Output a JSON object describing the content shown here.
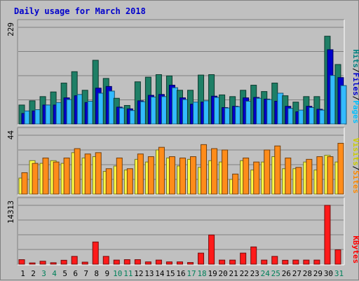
{
  "chart_data": {
    "type": "bar",
    "title": "Daily usage for March 2018",
    "categories": [
      "1",
      "2",
      "3",
      "4",
      "5",
      "6",
      "7",
      "8",
      "9",
      "10",
      "11",
      "12",
      "13",
      "14",
      "15",
      "16",
      "17",
      "18",
      "19",
      "20",
      "21",
      "22",
      "23",
      "24",
      "25",
      "26",
      "27",
      "28",
      "29",
      "30",
      "31"
    ],
    "weekend_days": [
      "3",
      "4",
      "10",
      "11",
      "17",
      "18",
      "24",
      "25",
      "31"
    ],
    "panels": [
      {
        "id": "top",
        "max_label": "229",
        "legend": [
          {
            "label": "Hits",
            "color": "#008080"
          },
          {
            "label": "/",
            "color": "#000000"
          },
          {
            "label": "Files",
            "color": "#0000CC"
          },
          {
            "label": "/",
            "color": "#000000"
          },
          {
            "label": "Pages",
            "color": "#00BFFF"
          }
        ],
        "ylim": [
          0,
          229
        ],
        "series": [
          {
            "name": "Hits",
            "color": "#1E7F66",
            "values": [
              45,
              55,
              65,
              76,
              97,
              124,
              80,
              151,
              108,
              61,
              44,
              100,
              111,
              117,
              114,
              80,
              80,
              116,
              117,
              69,
              65,
              80,
              92,
              77,
              97,
              67,
              52,
              65,
              65,
              208,
              141
            ]
          },
          {
            "name": "Files",
            "color": "#0000CC",
            "values": [
              25,
              31,
              45,
              45,
              62,
              67,
              51,
              85,
              89,
              40,
              36,
              55,
              68,
              70,
              92,
              62,
              47,
              52,
              66,
              39,
              42,
              62,
              63,
              59,
              54,
              42,
              29,
              42,
              35,
              176,
              110
            ]
          },
          {
            "name": "Pages",
            "color": "#33BBFF",
            "values": [
              31,
              34,
              45,
              51,
              58,
              70,
              54,
              73,
              78,
              38,
              32,
              53,
              64,
              65,
              86,
              58,
              52,
              55,
              63,
              38,
              41,
              54,
              61,
              58,
              73,
              37,
              33,
              39,
              33,
              115,
              91
            ]
          }
        ]
      },
      {
        "id": "middle",
        "max_label": "44",
        "legend": [
          {
            "label": "Visits",
            "color": "#CCCC00"
          },
          {
            "label": "/",
            "color": "#000000"
          },
          {
            "label": "Sites",
            "color": "#FF8800"
          }
        ],
        "ylim": [
          0,
          44
        ],
        "series": [
          {
            "name": "Visits",
            "color": "#FFFF44",
            "values": [
              12,
              25,
              23,
              25,
              23,
              31,
              27,
              28,
              17,
              21,
              18,
              26,
              24,
              33,
              27,
              21,
              26,
              20,
              25,
              24,
              11,
              25,
              18,
              24,
              28,
              19,
              19,
              24,
              18,
              29,
              24
            ]
          },
          {
            "name": "Sites",
            "color": "#FF8C1A",
            "values": [
              16,
              23,
              27,
              24,
              27,
              34,
              30,
              31,
              19,
              27,
              19,
              30,
              28,
              35,
              28,
              27,
              28,
              37,
              34,
              33,
              15,
              27,
              24,
              33,
              36,
              27,
              20,
              26,
              28,
              28,
              38
            ]
          }
        ]
      },
      {
        "id": "bottom",
        "max_label": "14313",
        "legend": [
          {
            "label": "KBytes",
            "color": "#FF0000"
          }
        ],
        "ylim": [
          0,
          14313
        ],
        "series": [
          {
            "name": "KBytes",
            "color": "#FF1A1A",
            "values": [
              1100,
              310,
              720,
              360,
              960,
              1900,
              500,
              5400,
              1900,
              1000,
              1100,
              1100,
              560,
              1000,
              560,
              560,
              410,
              2700,
              7100,
              1000,
              1000,
              2700,
              4200,
              1000,
              1900,
              960,
              1000,
              1000,
              1000,
              14313,
              3500
            ]
          }
        ]
      }
    ]
  }
}
